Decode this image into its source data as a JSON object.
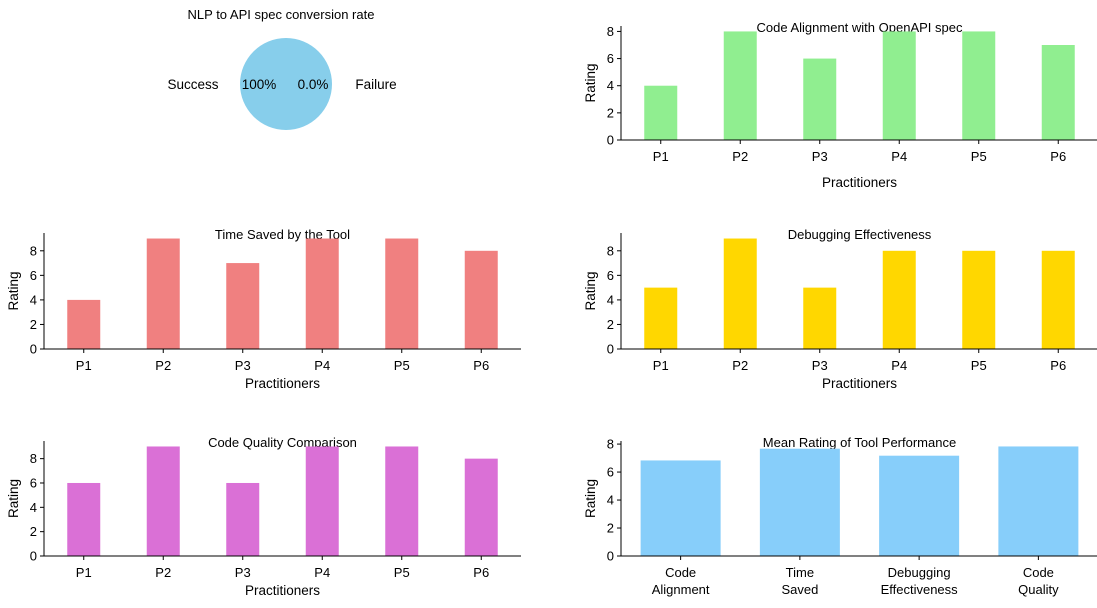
{
  "chart_data": [
    {
      "type": "pie",
      "title": "NLP to API spec conversion rate",
      "labels": [
        "Success",
        "Failure"
      ],
      "values": [
        100,
        0
      ],
      "value_labels": [
        "100%",
        "0.0%"
      ],
      "colors": [
        "#87CEEB",
        "#87CEEB"
      ]
    },
    {
      "type": "bar",
      "title": "Code Alignment with OpenAPI spec",
      "xlabel": "Practitioners",
      "ylabel": "Rating",
      "categories": [
        "P1",
        "P2",
        "P3",
        "P4",
        "P5",
        "P6"
      ],
      "values": [
        4,
        8,
        6,
        8,
        8,
        7
      ],
      "ylim": [
        0,
        8.4
      ],
      "yticks": [
        "0",
        "2",
        "4",
        "6",
        "8"
      ],
      "color": "#90EE90"
    },
    {
      "type": "bar",
      "title": "Time Saved by the Tool",
      "xlabel": "Practitioners",
      "ylabel": "Rating",
      "categories": [
        "P1",
        "P2",
        "P3",
        "P4",
        "P5",
        "P6"
      ],
      "values": [
        4,
        9,
        7,
        9,
        9,
        8
      ],
      "ylim": [
        0,
        9.45
      ],
      "yticks": [
        "0",
        "2",
        "4",
        "6",
        "8"
      ],
      "color": "#F08080"
    },
    {
      "type": "bar",
      "title": "Debugging Effectiveness",
      "xlabel": "Practitioners",
      "ylabel": "Rating",
      "categories": [
        "P1",
        "P2",
        "P3",
        "P4",
        "P5",
        "P6"
      ],
      "values": [
        5,
        9,
        5,
        8,
        8,
        8
      ],
      "ylim": [
        0,
        9.45
      ],
      "yticks": [
        "0",
        "2",
        "4",
        "6",
        "8"
      ],
      "color": "#FFD700"
    },
    {
      "type": "bar",
      "title": "Code Quality Comparison",
      "xlabel": "Practitioners",
      "ylabel": "Rating",
      "categories": [
        "P1",
        "P2",
        "P3",
        "P4",
        "P5",
        "P6"
      ],
      "values": [
        6,
        9,
        6,
        9,
        9,
        8
      ],
      "ylim": [
        0,
        9.45
      ],
      "yticks": [
        "0",
        "2",
        "4",
        "6",
        "8"
      ],
      "color": "#DA70D6"
    },
    {
      "type": "bar",
      "title": "Mean Rating of Tool Performance",
      "xlabel": "",
      "ylabel": "Rating",
      "categories": [
        "Code\nAlignment",
        "Time\nSaved",
        "Debugging\nEffectiveness",
        "Code\nQuality"
      ],
      "values": [
        6.83,
        7.67,
        7.17,
        7.83
      ],
      "ylim": [
        0,
        8.22
      ],
      "yticks": [
        "0",
        "2",
        "4",
        "6",
        "8"
      ],
      "color": "#87CEFA"
    }
  ]
}
